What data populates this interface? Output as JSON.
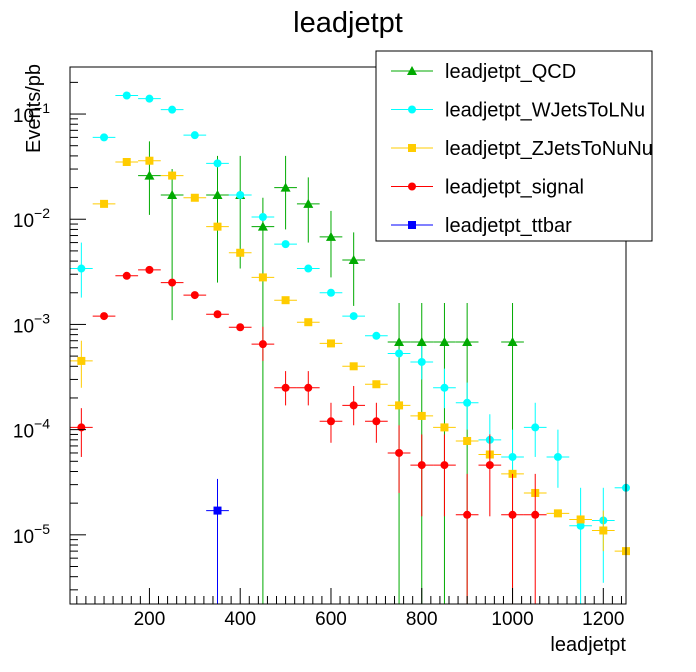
{
  "chart_data": {
    "type": "scatter",
    "title": "leadjetpt",
    "xlabel": "leadjetpt",
    "ylabel": "Events/pb",
    "xlim": [
      25,
      1250
    ],
    "ylim": [
      2.2e-06,
      0.28
    ],
    "yscale": "log",
    "x_ticks": [
      {
        "value": 200,
        "label": "200"
      },
      {
        "value": 400,
        "label": "400"
      },
      {
        "value": 600,
        "label": "600"
      },
      {
        "value": 800,
        "label": "800"
      },
      {
        "value": 1000,
        "label": "1000"
      },
      {
        "value": 1200,
        "label": "1200"
      }
    ],
    "y_ticks": [
      {
        "value": 1e-05,
        "base": "10",
        "exp": "−5"
      },
      {
        "value": 0.0001,
        "base": "10",
        "exp": "−4"
      },
      {
        "value": 0.001,
        "base": "10",
        "exp": "−3"
      },
      {
        "value": 0.01,
        "base": "10",
        "exp": "−2"
      },
      {
        "value": 0.1,
        "base": "10",
        "exp": "−1"
      }
    ],
    "bin_width": 50,
    "legend_position": "top-right",
    "series": [
      {
        "name": "leadjetpt_QCD",
        "color": "#00aa00",
        "marker": "triangle",
        "points": [
          {
            "x": 200,
            "y": 0.026,
            "lo": 0.011,
            "hi": 0.055
          },
          {
            "x": 250,
            "y": 0.017,
            "lo": 0.0011,
            "hi": 0.03
          },
          {
            "x": 350,
            "y": 0.017,
            "lo": 0.0025,
            "hi": 0.04
          },
          {
            "x": 400,
            "y": 0.017,
            "lo": 0.0034,
            "hi": 0.04
          },
          {
            "x": 450,
            "y": 0.0085,
            "lo": 2.2e-06,
            "hi": 0.016
          },
          {
            "x": 500,
            "y": 0.02,
            "lo": 0.008,
            "hi": 0.04
          },
          {
            "x": 550,
            "y": 0.014,
            "lo": 0.006,
            "hi": 0.025
          },
          {
            "x": 600,
            "y": 0.0068,
            "lo": 0.0028,
            "hi": 0.012
          },
          {
            "x": 650,
            "y": 0.0041,
            "lo": 0.0015,
            "hi": 0.0075
          },
          {
            "x": 750,
            "y": 0.00068,
            "lo": 2.2e-06,
            "hi": 0.0016
          },
          {
            "x": 800,
            "y": 0.00068,
            "lo": 2.2e-06,
            "hi": 0.0016
          },
          {
            "x": 850,
            "y": 0.00068,
            "lo": 2.2e-06,
            "hi": 0.0016
          },
          {
            "x": 900,
            "y": 0.00068,
            "lo": 2.2e-06,
            "hi": 0.0016
          },
          {
            "x": 1000,
            "y": 0.00068,
            "lo": 2.2e-06,
            "hi": 0.0016
          }
        ]
      },
      {
        "name": "leadjetpt_WJetsToLNu",
        "color": "#00ffff",
        "marker": "circle",
        "points": [
          {
            "x": 50,
            "y": 0.0034,
            "lo": 0.0018,
            "hi": 0.006
          },
          {
            "x": 100,
            "y": 0.06
          },
          {
            "x": 150,
            "y": 0.15
          },
          {
            "x": 200,
            "y": 0.14
          },
          {
            "x": 250,
            "y": 0.11
          },
          {
            "x": 300,
            "y": 0.063
          },
          {
            "x": 350,
            "y": 0.034
          },
          {
            "x": 400,
            "y": 0.017
          },
          {
            "x": 450,
            "y": 0.0105
          },
          {
            "x": 500,
            "y": 0.0058
          },
          {
            "x": 550,
            "y": 0.0034
          },
          {
            "x": 600,
            "y": 0.002
          },
          {
            "x": 650,
            "y": 0.0012
          },
          {
            "x": 700,
            "y": 0.00078
          },
          {
            "x": 750,
            "y": 0.00053
          },
          {
            "x": 800,
            "y": 0.00044,
            "lo": 0.0003,
            "hi": 0.00062
          },
          {
            "x": 850,
            "y": 0.00025,
            "lo": 0.00016,
            "hi": 0.00038
          },
          {
            "x": 900,
            "y": 0.00018,
            "lo": 0.0001,
            "hi": 0.00028
          },
          {
            "x": 950,
            "y": 8e-05,
            "lo": 4.5e-05,
            "hi": 0.00014
          },
          {
            "x": 1000,
            "y": 5.5e-05,
            "lo": 2.8e-05,
            "hi": 0.0001
          },
          {
            "x": 1050,
            "y": 0.000105,
            "lo": 5.5e-05,
            "hi": 0.00018
          },
          {
            "x": 1100,
            "y": 5.5e-05,
            "lo": 2.8e-05,
            "hi": 0.0001
          },
          {
            "x": 1150,
            "y": 1.22e-05,
            "lo": 2.2e-06,
            "hi": 2.8e-05
          },
          {
            "x": 1200,
            "y": 1.37e-05,
            "lo": 3.5e-06,
            "hi": 2.8e-05
          },
          {
            "x": 1250,
            "y": 2.8e-05,
            "lo": 5.5e-06,
            "hi": 6e-05
          }
        ]
      },
      {
        "name": "leadjetpt_ZJetsToNuNu",
        "color": "#ffcc00",
        "marker": "square",
        "points": [
          {
            "x": 50,
            "y": 0.00045,
            "lo": 0.00025,
            "hi": 0.0007
          },
          {
            "x": 100,
            "y": 0.014
          },
          {
            "x": 150,
            "y": 0.035
          },
          {
            "x": 200,
            "y": 0.036
          },
          {
            "x": 250,
            "y": 0.026
          },
          {
            "x": 300,
            "y": 0.016
          },
          {
            "x": 350,
            "y": 0.0085
          },
          {
            "x": 400,
            "y": 0.0048
          },
          {
            "x": 450,
            "y": 0.0028
          },
          {
            "x": 500,
            "y": 0.0017
          },
          {
            "x": 550,
            "y": 0.00105
          },
          {
            "x": 600,
            "y": 0.00066
          },
          {
            "x": 650,
            "y": 0.0004
          },
          {
            "x": 700,
            "y": 0.00027
          },
          {
            "x": 750,
            "y": 0.00017
          },
          {
            "x": 800,
            "y": 0.000135
          },
          {
            "x": 850,
            "y": 0.000105
          },
          {
            "x": 900,
            "y": 7.8e-05
          },
          {
            "x": 950,
            "y": 5.8e-05
          },
          {
            "x": 1000,
            "y": 3.8e-05
          },
          {
            "x": 1050,
            "y": 2.5e-05
          },
          {
            "x": 1100,
            "y": 1.6e-05
          },
          {
            "x": 1150,
            "y": 1.4e-05
          },
          {
            "x": 1200,
            "y": 1.1e-05,
            "lo": 7e-06,
            "hi": 1.7e-05
          },
          {
            "x": 1250,
            "y": 7e-06,
            "lo": 4.5e-06,
            "hi": 1.1e-05
          }
        ]
      },
      {
        "name": "leadjetpt_signal",
        "color": "#ff0000",
        "marker": "circle",
        "points": [
          {
            "x": 50,
            "y": 0.000105,
            "lo": 5.5e-05,
            "hi": 0.00016
          },
          {
            "x": 100,
            "y": 0.0012
          },
          {
            "x": 150,
            "y": 0.0029
          },
          {
            "x": 200,
            "y": 0.0033
          },
          {
            "x": 250,
            "y": 0.0025
          },
          {
            "x": 300,
            "y": 0.0019
          },
          {
            "x": 350,
            "y": 0.00125
          },
          {
            "x": 400,
            "y": 0.00094
          },
          {
            "x": 450,
            "y": 0.00065,
            "lo": 0.00045,
            "hi": 0.00095
          },
          {
            "x": 500,
            "y": 0.00025,
            "lo": 0.00017,
            "hi": 0.00036
          },
          {
            "x": 550,
            "y": 0.00025,
            "lo": 0.00017,
            "hi": 0.00036
          },
          {
            "x": 600,
            "y": 0.00012,
            "lo": 7.5e-05,
            "hi": 0.00018
          },
          {
            "x": 650,
            "y": 0.00017,
            "lo": 0.00011,
            "hi": 0.00026
          },
          {
            "x": 700,
            "y": 0.00012,
            "lo": 7.5e-05,
            "hi": 0.00018
          },
          {
            "x": 750,
            "y": 6e-05,
            "lo": 2.5e-05,
            "hi": 0.00011
          },
          {
            "x": 800,
            "y": 4.6e-05,
            "lo": 1.5e-05,
            "hi": 9e-05
          },
          {
            "x": 850,
            "y": 4.6e-05,
            "lo": 1.5e-05,
            "hi": 9e-05
          },
          {
            "x": 900,
            "y": 1.55e-05,
            "lo": 2.2e-06,
            "hi": 3.8e-05
          },
          {
            "x": 950,
            "y": 4.6e-05,
            "lo": 1.5e-05,
            "hi": 9e-05
          },
          {
            "x": 1000,
            "y": 1.55e-05,
            "lo": 2.2e-06,
            "hi": 3.8e-05
          },
          {
            "x": 1050,
            "y": 1.55e-05,
            "lo": 2.2e-06,
            "hi": 3.8e-05
          }
        ]
      },
      {
        "name": "leadjetpt_ttbar",
        "color": "#0000ff",
        "marker": "square",
        "points": [
          {
            "x": 350,
            "y": 1.7e-05,
            "lo": 2.2e-06,
            "hi": 3.4e-05
          }
        ]
      }
    ]
  }
}
